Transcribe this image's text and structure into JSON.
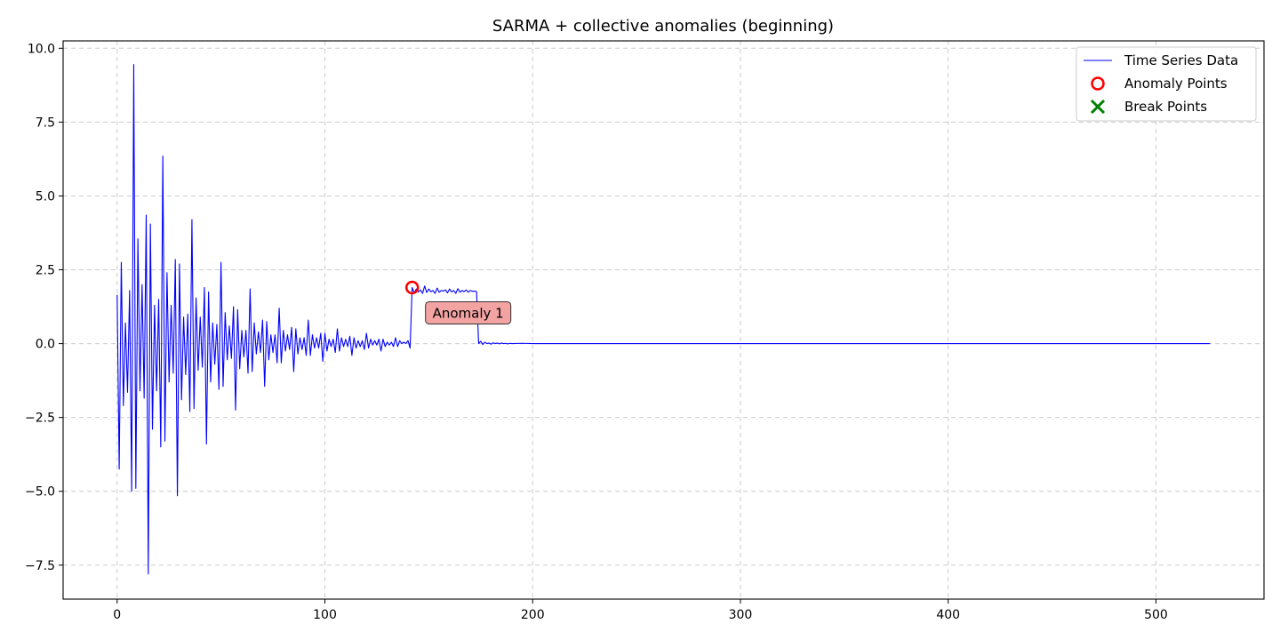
{
  "chart_data": {
    "type": "line",
    "title": "SARMA + collective anomalies (beginning)",
    "xlabel": "",
    "ylabel": "",
    "xlim": [
      -26,
      552
    ],
    "ylim": [
      -8.65,
      10.25
    ],
    "x_ticks": [
      0,
      100,
      200,
      300,
      400,
      500
    ],
    "y_ticks": [
      -7.5,
      -5.0,
      -2.5,
      0.0,
      2.5,
      5.0,
      7.5,
      10.0
    ],
    "x_tick_labels": [
      "0",
      "100",
      "200",
      "300",
      "400",
      "500"
    ],
    "y_tick_labels": [
      "−7.5",
      "−5.0",
      "−2.5",
      "0.0",
      "2.5",
      "5.0",
      "7.5",
      "10.0"
    ],
    "grid": true,
    "legend_position": "top-right",
    "series": [
      {
        "name": "Time Series Data",
        "color": "#0000ff",
        "sampled_points": [
          [
            0,
            1.65
          ],
          [
            1,
            -4.25
          ],
          [
            2,
            2.75
          ],
          [
            3,
            -2.1
          ],
          [
            4,
            0.7
          ],
          [
            5,
            -1.65
          ],
          [
            6,
            1.8
          ],
          [
            7,
            -5.0
          ],
          [
            8,
            9.45
          ],
          [
            9,
            -4.9
          ],
          [
            10,
            3.55
          ],
          [
            11,
            -1.6
          ],
          [
            12,
            2.0
          ],
          [
            13,
            -1.85
          ],
          [
            14,
            4.35
          ],
          [
            15,
            -7.8
          ],
          [
            16,
            4.05
          ],
          [
            17,
            -2.9
          ],
          [
            18,
            1.3
          ],
          [
            19,
            -1.6
          ],
          [
            20,
            1.5
          ],
          [
            21,
            -3.5
          ],
          [
            22,
            6.35
          ],
          [
            23,
            -3.3
          ],
          [
            24,
            2.4
          ],
          [
            25,
            -1.3
          ],
          [
            26,
            1.3
          ],
          [
            27,
            -1.0
          ],
          [
            28,
            2.85
          ],
          [
            29,
            -5.15
          ],
          [
            30,
            2.7
          ],
          [
            31,
            -1.9
          ],
          [
            32,
            0.9
          ],
          [
            33,
            -1.05
          ],
          [
            34,
            1.0
          ],
          [
            35,
            -2.3
          ],
          [
            36,
            4.2
          ],
          [
            37,
            -2.2
          ],
          [
            38,
            1.55
          ],
          [
            39,
            -0.9
          ],
          [
            40,
            0.9
          ],
          [
            41,
            -0.8
          ],
          [
            42,
            1.9
          ],
          [
            43,
            -3.4
          ],
          [
            44,
            1.75
          ],
          [
            45,
            -1.3
          ],
          [
            46,
            0.7
          ],
          [
            47,
            -0.7
          ],
          [
            48,
            0.65
          ],
          [
            49,
            -1.55
          ],
          [
            50,
            2.75
          ],
          [
            51,
            -1.45
          ],
          [
            52,
            1.05
          ],
          [
            53,
            -0.55
          ],
          [
            54,
            0.6
          ],
          [
            55,
            -0.5
          ],
          [
            56,
            1.25
          ],
          [
            57,
            -2.25
          ],
          [
            58,
            1.15
          ],
          [
            59,
            -0.85
          ],
          [
            60,
            0.45
          ],
          [
            61,
            -0.45
          ],
          [
            62,
            0.45
          ],
          [
            63,
            -1.0
          ],
          [
            64,
            1.85
          ],
          [
            65,
            -0.95
          ],
          [
            66,
            0.7
          ],
          [
            67,
            -0.35
          ],
          [
            68,
            0.4
          ],
          [
            69,
            -0.3
          ],
          [
            70,
            0.8
          ],
          [
            71,
            -1.45
          ],
          [
            72,
            0.75
          ],
          [
            73,
            -0.55
          ],
          [
            74,
            0.3
          ],
          [
            75,
            -0.3
          ],
          [
            76,
            0.3
          ],
          [
            77,
            -0.65
          ],
          [
            78,
            1.2
          ],
          [
            79,
            -0.65
          ],
          [
            80,
            0.45
          ],
          [
            81,
            -0.25
          ],
          [
            82,
            0.3
          ],
          [
            83,
            -0.2
          ],
          [
            84,
            0.55
          ],
          [
            85,
            -0.95
          ],
          [
            86,
            0.5
          ],
          [
            87,
            -0.35
          ],
          [
            88,
            0.2
          ],
          [
            89,
            -0.2
          ],
          [
            90,
            0.2
          ],
          [
            91,
            -0.4
          ],
          [
            92,
            0.8
          ],
          [
            93,
            -0.4
          ],
          [
            94,
            0.3
          ],
          [
            95,
            -0.15
          ],
          [
            96,
            0.2
          ],
          [
            97,
            -0.15
          ],
          [
            98,
            0.35
          ],
          [
            99,
            -0.6
          ],
          [
            100,
            0.35
          ],
          [
            101,
            -0.25
          ],
          [
            102,
            0.15
          ],
          [
            103,
            -0.1
          ],
          [
            104,
            0.15
          ],
          [
            105,
            -0.3
          ],
          [
            106,
            0.5
          ],
          [
            107,
            -0.25
          ],
          [
            108,
            0.2
          ],
          [
            109,
            -0.1
          ],
          [
            110,
            0.15
          ],
          [
            111,
            -0.1
          ],
          [
            112,
            0.25
          ],
          [
            113,
            -0.4
          ],
          [
            114,
            0.2
          ],
          [
            115,
            -0.15
          ],
          [
            116,
            0.1
          ],
          [
            117,
            -0.1
          ],
          [
            118,
            0.1
          ],
          [
            119,
            -0.2
          ],
          [
            120,
            0.35
          ],
          [
            121,
            -0.15
          ],
          [
            122,
            0.15
          ],
          [
            123,
            -0.05
          ],
          [
            124,
            0.1
          ],
          [
            125,
            -0.05
          ],
          [
            126,
            0.15
          ],
          [
            127,
            -0.25
          ],
          [
            128,
            0.15
          ],
          [
            129,
            -0.1
          ],
          [
            130,
            0.05
          ],
          [
            131,
            -0.05
          ],
          [
            132,
            0.05
          ],
          [
            133,
            -0.1
          ],
          [
            134,
            0.2
          ],
          [
            135,
            -0.1
          ],
          [
            136,
            0.1
          ],
          [
            137,
            0.0
          ],
          [
            138,
            0.05
          ],
          [
            139,
            0.0
          ],
          [
            140,
            0.1
          ],
          [
            141,
            -0.15
          ],
          [
            142,
            1.9
          ],
          [
            143,
            1.72
          ],
          [
            144,
            1.85
          ],
          [
            145,
            1.75
          ],
          [
            146,
            1.82
          ],
          [
            147,
            1.7
          ],
          [
            148,
            1.95
          ],
          [
            149,
            1.73
          ],
          [
            150,
            1.85
          ],
          [
            151,
            1.76
          ],
          [
            152,
            1.8
          ],
          [
            153,
            1.7
          ],
          [
            154,
            1.88
          ],
          [
            155,
            1.74
          ],
          [
            156,
            1.8
          ],
          [
            157,
            1.78
          ],
          [
            158,
            1.82
          ],
          [
            159,
            1.72
          ],
          [
            160,
            1.85
          ],
          [
            161,
            1.75
          ],
          [
            162,
            1.8
          ],
          [
            163,
            1.7
          ],
          [
            164,
            1.86
          ],
          [
            165,
            1.74
          ],
          [
            166,
            1.8
          ],
          [
            167,
            1.76
          ],
          [
            168,
            1.82
          ],
          [
            169,
            1.74
          ],
          [
            170,
            1.8
          ],
          [
            171,
            1.77
          ],
          [
            172,
            1.78
          ],
          [
            173,
            1.76
          ],
          [
            174,
            0.0
          ],
          [
            175,
            0.08
          ],
          [
            176,
            -0.03
          ],
          [
            177,
            0.05
          ],
          [
            178,
            0.0
          ],
          [
            179,
            0.02
          ],
          [
            180,
            -0.02
          ],
          [
            181,
            0.03
          ],
          [
            182,
            0.0
          ],
          [
            183,
            0.02
          ],
          [
            184,
            -0.01
          ],
          [
            185,
            0.02
          ],
          [
            186,
            0.0
          ],
          [
            187,
            0.01
          ],
          [
            188,
            -0.01
          ],
          [
            189,
            0.01
          ],
          [
            190,
            0.0
          ],
          [
            195,
            0.01
          ],
          [
            200,
            0.0
          ],
          [
            205,
            0.0
          ],
          [
            210,
            0.0
          ],
          [
            300,
            0.0
          ],
          [
            400,
            0.0
          ],
          [
            500,
            0.0
          ],
          [
            526,
            0.0
          ]
        ]
      },
      {
        "name": "Anomaly Points",
        "color": "#ff0000",
        "marker": "circle-open",
        "points": [
          [
            142,
            1.9
          ]
        ]
      },
      {
        "name": "Break Points",
        "color": "#008000",
        "marker": "x",
        "points": []
      }
    ],
    "annotations": [
      {
        "text": "Anomaly 1",
        "x": 142,
        "y": 1.9,
        "box_color": "#f4a3a3"
      }
    ]
  }
}
